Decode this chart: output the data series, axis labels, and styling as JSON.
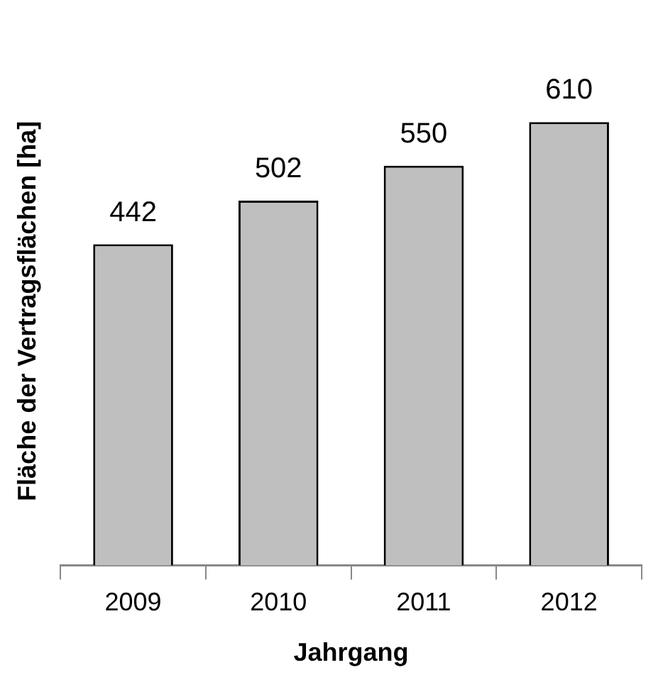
{
  "chart_data": {
    "type": "bar",
    "xlabel": "Jahrgang",
    "ylabel": "Fläche der Vertragsflächen [ha]",
    "categories": [
      "2009",
      "2010",
      "2011",
      "2012"
    ],
    "values": [
      442,
      502,
      550,
      610
    ],
    "color": "#bfbfbf",
    "data_labels": true
  }
}
